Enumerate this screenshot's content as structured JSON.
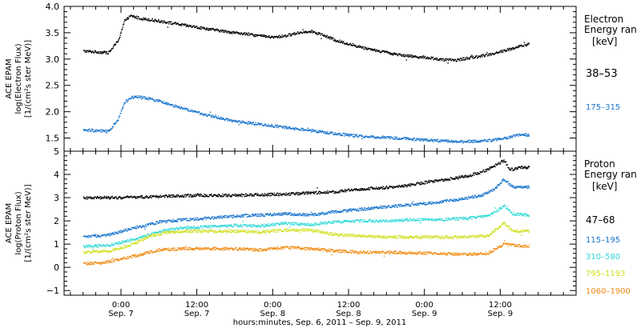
{
  "chart_data": [
    {
      "type": "scatter",
      "panel": "electron",
      "ylabel_lines": [
        "ACE EPAM",
        "log(Electron Flux)",
        "[1/(cm²s ster MeV)]"
      ],
      "ylim": [
        1.25,
        4.0
      ],
      "yticks": [
        1.5,
        2.0,
        2.5,
        3.0,
        3.5,
        4.0
      ],
      "ytick_labels": [
        "1.5",
        "2.0",
        "2.5",
        "3.0",
        "3.5",
        "4.0"
      ],
      "legend_title_lines": [
        "Electron",
        "Energy ran",
        "[keV]"
      ],
      "series": [
        {
          "name": "38–53",
          "color": "#000000",
          "x": [
            -6,
            -2,
            -0.5,
            0.5,
            1.5,
            3,
            5,
            8,
            12,
            16,
            20,
            24,
            26,
            28,
            30,
            32,
            34,
            37,
            40,
            43,
            46,
            49,
            51,
            53,
            55,
            58,
            61,
            63,
            64.5
          ],
          "y": [
            3.15,
            3.12,
            3.35,
            3.72,
            3.82,
            3.77,
            3.74,
            3.68,
            3.6,
            3.53,
            3.47,
            3.41,
            3.44,
            3.5,
            3.53,
            3.45,
            3.35,
            3.25,
            3.17,
            3.1,
            3.05,
            3.02,
            2.98,
            2.98,
            3.02,
            3.08,
            3.17,
            3.24,
            3.28
          ]
        },
        {
          "name": "175–315",
          "color": "#1874cd",
          "x": [
            -6,
            -2,
            -0.5,
            0.5,
            1.5,
            3,
            6,
            10,
            14,
            18,
            22,
            26,
            30,
            34,
            38,
            42,
            46,
            50,
            54,
            58,
            61,
            63,
            64.5
          ],
          "y": [
            1.65,
            1.63,
            1.85,
            2.17,
            2.27,
            2.28,
            2.2,
            2.05,
            1.92,
            1.82,
            1.76,
            1.7,
            1.64,
            1.58,
            1.53,
            1.51,
            1.48,
            1.45,
            1.43,
            1.45,
            1.5,
            1.57,
            1.55
          ]
        }
      ]
    },
    {
      "type": "scatter",
      "panel": "proton",
      "ylabel_lines": [
        "ACE EPAM",
        "log(Proton Flux)",
        "[1/(cm²s ster MeV)]"
      ],
      "ylim": [
        -1.2,
        5.0
      ],
      "yticks": [
        -1,
        0,
        1,
        2,
        3,
        4,
        5
      ],
      "ytick_labels": [
        "−1",
        "0",
        "1",
        "2",
        "3",
        "4",
        "5"
      ],
      "legend_title_lines": [
        "Proton",
        "Energy ran",
        "[keV]"
      ],
      "xlabel": "hours:minutes, Sep.  6, 2011 – Sep.  9, 2011",
      "xlim": [
        -9,
        72
      ],
      "xticks": [
        0,
        12,
        24,
        36,
        48,
        60
      ],
      "xtick_labels": [
        "0:00",
        "12:00",
        "0:00",
        "12:00",
        "0:00",
        "12:00"
      ],
      "xtick_sublabels": [
        "Sep. 7",
        "Sep. 7",
        "Sep. 8",
        "Sep. 8",
        "Sep. 9",
        "Sep. 9"
      ],
      "series": [
        {
          "name": "47–68",
          "color": "#000000",
          "x": [
            -6,
            0,
            6,
            12,
            18,
            22,
            26,
            30,
            34,
            37,
            40,
            43,
            46,
            49,
            52,
            55,
            57,
            59,
            60.5,
            61.5,
            63,
            64.5
          ],
          "y": [
            3.0,
            3.0,
            3.05,
            3.1,
            3.1,
            3.12,
            3.15,
            3.2,
            3.25,
            3.35,
            3.4,
            3.45,
            3.55,
            3.7,
            3.8,
            3.95,
            4.1,
            4.35,
            4.6,
            4.2,
            4.3,
            4.3
          ]
        },
        {
          "name": "115–195",
          "color": "#1874cd",
          "x": [
            -6,
            -2,
            2,
            6,
            10,
            14,
            18,
            22,
            26,
            30,
            34,
            38,
            42,
            46,
            50,
            54,
            57,
            59,
            60.5,
            62,
            64.5
          ],
          "y": [
            1.3,
            1.4,
            1.7,
            1.95,
            2.05,
            2.12,
            2.2,
            2.25,
            2.3,
            2.25,
            2.4,
            2.5,
            2.6,
            2.7,
            2.8,
            2.95,
            3.1,
            3.35,
            3.8,
            3.45,
            3.45
          ]
        },
        {
          "name": "310–580",
          "color": "#30d8d8",
          "x": [
            -6,
            -2,
            2,
            6,
            10,
            14,
            18,
            22,
            26,
            30,
            34,
            38,
            42,
            46,
            50,
            54,
            58,
            60.5,
            62,
            64.5
          ],
          "y": [
            0.9,
            0.95,
            1.2,
            1.55,
            1.7,
            1.75,
            1.8,
            1.78,
            1.9,
            1.85,
            1.95,
            2.0,
            2.0,
            2.05,
            2.05,
            2.1,
            2.2,
            2.65,
            2.3,
            2.25
          ]
        },
        {
          "name": "795–1193",
          "color": "#d0e020",
          "x": [
            -6,
            -2,
            2,
            4,
            7,
            10,
            14,
            18,
            22,
            26,
            30,
            34,
            38,
            42,
            46,
            50,
            54,
            58,
            60.5,
            62,
            64.5
          ],
          "y": [
            0.65,
            0.7,
            1.0,
            1.3,
            1.5,
            1.55,
            1.55,
            1.55,
            1.52,
            1.6,
            1.6,
            1.4,
            1.35,
            1.3,
            1.3,
            1.3,
            1.3,
            1.35,
            1.9,
            1.55,
            1.55
          ]
        },
        {
          "name": "1060–1900",
          "color": "#f08a10",
          "x": [
            -6,
            -3,
            0,
            3,
            6,
            10,
            14,
            18,
            22,
            26,
            30,
            34,
            38,
            42,
            46,
            50,
            54,
            58,
            60.5,
            62,
            64.5
          ],
          "y": [
            0.15,
            0.2,
            0.35,
            0.55,
            0.75,
            0.8,
            0.8,
            0.8,
            0.75,
            0.85,
            0.8,
            0.7,
            0.65,
            0.65,
            0.62,
            0.6,
            0.55,
            0.6,
            1.0,
            0.95,
            0.9
          ]
        }
      ]
    }
  ]
}
